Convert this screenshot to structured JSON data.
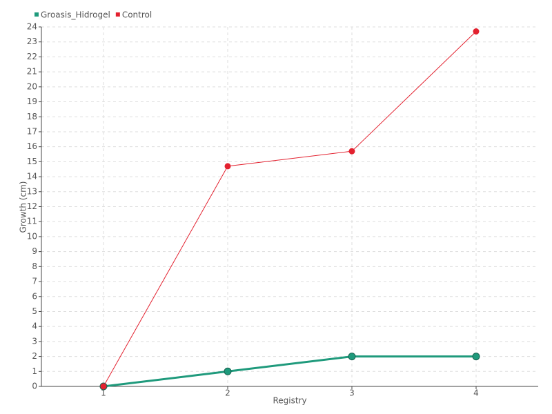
{
  "chart_data": {
    "type": "line",
    "x_label": "Registry",
    "y_label": "Growth (cm)",
    "x": [
      1,
      2,
      3,
      4
    ],
    "series": [
      {
        "name": "Groasis_Hidrogel",
        "color": "#1f9a7c",
        "values": [
          0,
          1,
          2,
          2
        ]
      },
      {
        "name": "Control",
        "color": "#e3212f",
        "values": [
          0,
          14.7,
          15.7,
          23.7
        ]
      }
    ],
    "xlim": [
      0.5,
      4.5
    ],
    "xticks": [
      1,
      2,
      3,
      4
    ],
    "ylim": [
      0,
      24
    ],
    "yticks": [
      0,
      1,
      2,
      3,
      4,
      5,
      6,
      7,
      8,
      9,
      10,
      11,
      12,
      13,
      14,
      15,
      16,
      17,
      18,
      19,
      20,
      21,
      22,
      23,
      24
    ],
    "grid": true,
    "legend": "top-left"
  }
}
